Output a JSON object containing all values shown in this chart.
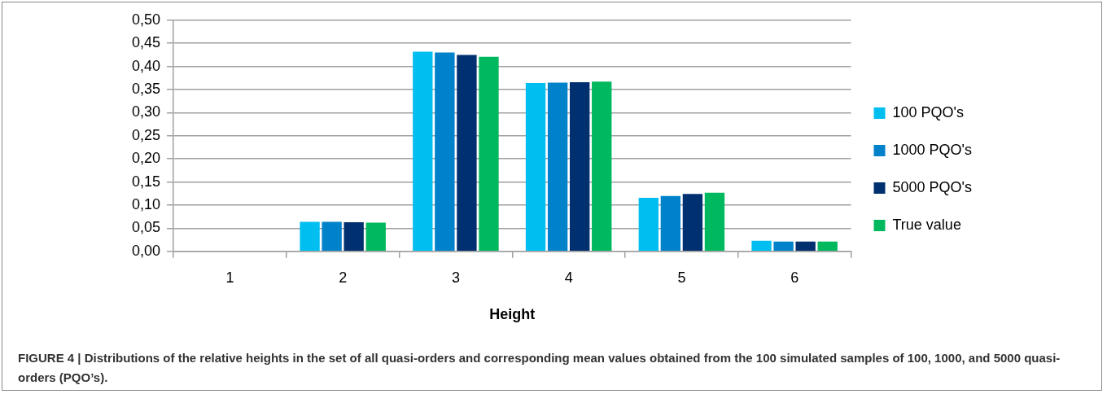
{
  "chart_data": {
    "type": "bar",
    "xlabel": "Height",
    "categories": [
      "1",
      "2",
      "3",
      "4",
      "5",
      "6"
    ],
    "series": [
      {
        "name": "100 PQO's",
        "color": "#00bff0",
        "values": [
          0,
          0.064,
          0.432,
          0.364,
          0.116,
          0.023
        ]
      },
      {
        "name": "1000 PQO's",
        "color": "#0082ca",
        "values": [
          0,
          0.064,
          0.43,
          0.365,
          0.12,
          0.021
        ]
      },
      {
        "name": "5000 PQO's",
        "color": "#003070",
        "values": [
          0,
          0.063,
          0.425,
          0.366,
          0.124,
          0.021
        ]
      },
      {
        "name": "True value",
        "color": "#00b85e",
        "values": [
          0,
          0.062,
          0.421,
          0.367,
          0.127,
          0.021
        ]
      }
    ],
    "ylim": [
      0,
      0.5
    ],
    "yticks": [
      {
        "value": 0,
        "label": "0,00"
      },
      {
        "value": 0.05,
        "label": "0,05"
      },
      {
        "value": 0.1,
        "label": "0,10"
      },
      {
        "value": 0.15,
        "label": "0,15"
      },
      {
        "value": 0.2,
        "label": "0,20"
      },
      {
        "value": 0.25,
        "label": "0,25"
      },
      {
        "value": 0.3,
        "label": "0,30"
      },
      {
        "value": 0.35,
        "label": "0,35"
      },
      {
        "value": 0.4,
        "label": "0,40"
      },
      {
        "value": 0.45,
        "label": "0,45"
      },
      {
        "value": 0.5,
        "label": "0,50"
      }
    ],
    "grid": "y",
    "legend": "right",
    "annotations": [
      "FIGURE 4 | Distributions of the relative heights in the set of all quasi-orders and corresponding mean values obtained from the 100 simulated samples of 100, 1000, and 5000 quasi-orders (PQO’s)."
    ]
  }
}
